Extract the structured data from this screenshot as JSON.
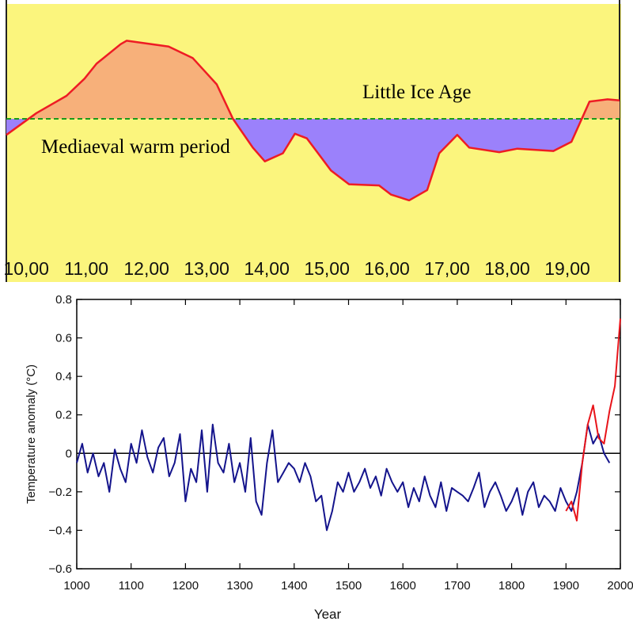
{
  "chart_data": [
    {
      "type": "area",
      "x_tick_labels": [
        "10,00",
        "11,00",
        "12,00",
        "13,00",
        "14,00",
        "15,00",
        "16,00",
        "17,00",
        "18,00",
        "19,00"
      ],
      "x_ticks": [
        1000,
        1100,
        1200,
        1300,
        1400,
        1500,
        1600,
        1700,
        1800,
        1900
      ],
      "xlim": [
        980,
        2000
      ],
      "ylim": [
        -1.0,
        1.0
      ],
      "baseline": 0,
      "grid": false,
      "annotations": [
        "Mediaeval warm period",
        "Little Ice Age"
      ],
      "series": [
        {
          "x": [
            980,
            1030,
            1080,
            1110,
            1130,
            1170,
            1180,
            1250,
            1290,
            1330,
            1357,
            1390,
            1410,
            1440,
            1460,
            1480,
            1520,
            1550,
            1600,
            1620,
            1650,
            1680,
            1700,
            1730,
            1750,
            1800,
            1830,
            1890,
            1920,
            1950,
            1980,
            2000
          ],
          "values": [
            -0.14,
            0.05,
            0.2,
            0.35,
            0.48,
            0.65,
            0.68,
            0.63,
            0.53,
            0.3,
            0.0,
            -0.25,
            -0.37,
            -0.3,
            -0.13,
            -0.17,
            -0.45,
            -0.57,
            -0.58,
            -0.66,
            -0.71,
            -0.62,
            -0.3,
            -0.14,
            -0.25,
            -0.29,
            -0.26,
            -0.28,
            -0.2,
            0.15,
            0.17,
            0.16
          ],
          "colors": {
            "line": "#ee1c24",
            "above": "#f7b07a",
            "below": "#9b81fb",
            "baseline": "#1a9a1a",
            "background": "#fbf57d"
          }
        }
      ]
    },
    {
      "type": "line",
      "xlabel": "Year",
      "ylabel": "Temperature anomaly (°C)",
      "xlim": [
        1000,
        2000
      ],
      "ylim": [
        -0.6,
        0.8
      ],
      "x_ticks": [
        1000,
        1100,
        1200,
        1300,
        1400,
        1500,
        1600,
        1700,
        1800,
        1900,
        2000
      ],
      "y_ticks": [
        -0.6,
        -0.4,
        -0.2,
        0,
        0.2,
        0.4,
        0.6,
        0.8
      ],
      "y_tick_labels": [
        "−0.6",
        "−0.4",
        "−0.2",
        "0",
        "0.2",
        "0.4",
        "0.6",
        "0.8"
      ],
      "grid": false,
      "series": [
        {
          "color": "#14148c",
          "x": [
            1000,
            1010,
            1020,
            1030,
            1040,
            1050,
            1060,
            1070,
            1080,
            1090,
            1100,
            1110,
            1120,
            1130,
            1140,
            1150,
            1160,
            1170,
            1180,
            1190,
            1200,
            1210,
            1220,
            1230,
            1240,
            1250,
            1260,
            1270,
            1280,
            1290,
            1300,
            1310,
            1320,
            1330,
            1340,
            1350,
            1360,
            1370,
            1380,
            1390,
            1400,
            1410,
            1420,
            1430,
            1440,
            1450,
            1460,
            1470,
            1480,
            1490,
            1500,
            1510,
            1520,
            1530,
            1540,
            1550,
            1560,
            1570,
            1580,
            1590,
            1600,
            1610,
            1620,
            1630,
            1640,
            1650,
            1660,
            1670,
            1680,
            1690,
            1700,
            1710,
            1720,
            1730,
            1740,
            1750,
            1760,
            1770,
            1780,
            1790,
            1800,
            1810,
            1820,
            1830,
            1840,
            1850,
            1860,
            1870,
            1880,
            1890,
            1900,
            1910,
            1920,
            1930,
            1940,
            1950,
            1960,
            1970,
            1980
          ],
          "values": [
            -0.05,
            0.05,
            -0.1,
            0.0,
            -0.12,
            -0.05,
            -0.2,
            0.02,
            -0.08,
            -0.15,
            0.05,
            -0.05,
            0.12,
            -0.02,
            -0.1,
            0.03,
            0.08,
            -0.12,
            -0.05,
            0.1,
            -0.25,
            -0.08,
            -0.15,
            0.12,
            -0.2,
            0.15,
            -0.05,
            -0.1,
            0.05,
            -0.15,
            -0.05,
            -0.2,
            0.08,
            -0.25,
            -0.32,
            -0.05,
            0.12,
            -0.15,
            -0.1,
            -0.05,
            -0.08,
            -0.15,
            -0.05,
            -0.12,
            -0.25,
            -0.22,
            -0.4,
            -0.3,
            -0.15,
            -0.2,
            -0.1,
            -0.2,
            -0.15,
            -0.08,
            -0.18,
            -0.12,
            -0.22,
            -0.08,
            -0.15,
            -0.2,
            -0.15,
            -0.28,
            -0.18,
            -0.25,
            -0.12,
            -0.22,
            -0.28,
            -0.15,
            -0.3,
            -0.18,
            -0.2,
            -0.22,
            -0.25,
            -0.18,
            -0.1,
            -0.28,
            -0.2,
            -0.15,
            -0.22,
            -0.3,
            -0.25,
            -0.18,
            -0.32,
            -0.2,
            -0.15,
            -0.28,
            -0.22,
            -0.25,
            -0.3,
            -0.18,
            -0.25,
            -0.3,
            -0.2,
            -0.05,
            0.15,
            0.05,
            0.1,
            0.0,
            -0.05
          ]
        },
        {
          "color": "#e8141a",
          "x": [
            1900,
            1910,
            1920,
            1930,
            1940,
            1950,
            1960,
            1970,
            1980,
            1990,
            2000
          ],
          "values": [
            -0.3,
            -0.25,
            -0.35,
            -0.05,
            0.15,
            0.25,
            0.08,
            0.05,
            0.22,
            0.35,
            0.7
          ]
        }
      ]
    }
  ]
}
